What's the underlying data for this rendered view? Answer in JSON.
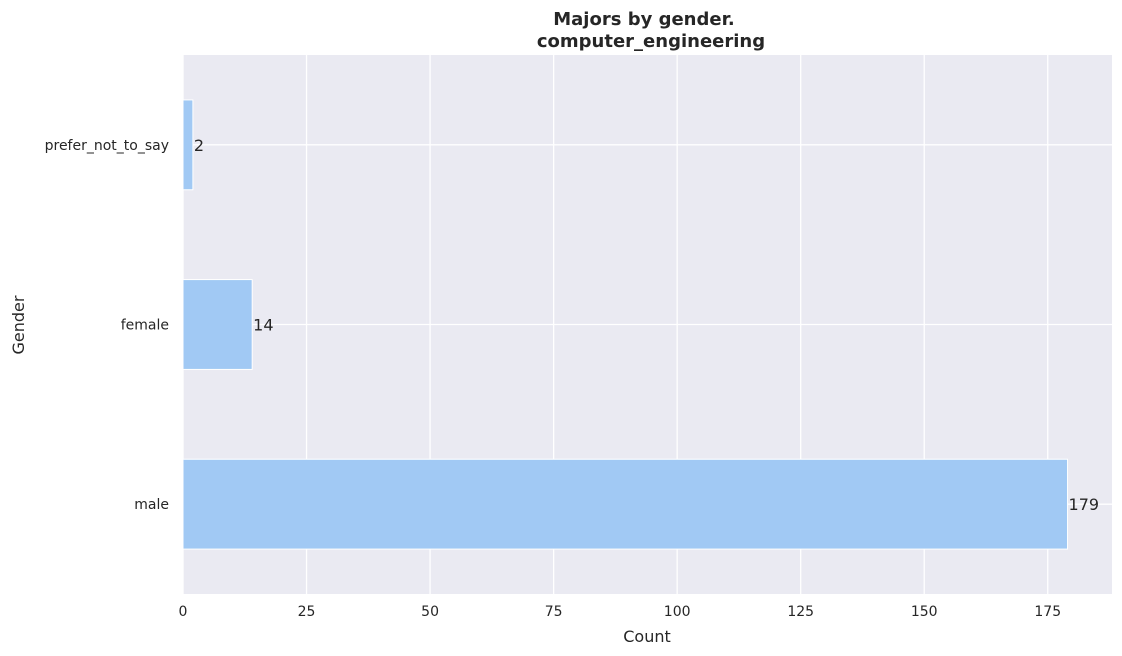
{
  "chart_data": {
    "type": "bar",
    "orientation": "horizontal",
    "title": "Majors by gender.",
    "subtitle": "computer_engineering",
    "xlabel": "Count",
    "ylabel": "Gender",
    "categories": [
      "prefer_not_to_say",
      "female",
      "male"
    ],
    "values": [
      2,
      14,
      179
    ],
    "data_labels": [
      "2",
      "14",
      "179"
    ],
    "x_ticks": [
      0,
      25,
      50,
      75,
      100,
      125,
      150,
      175
    ],
    "x_tick_labels": [
      "0",
      "25",
      "50",
      "75",
      "100",
      "125",
      "150",
      "175"
    ],
    "xlim": [
      0,
      188
    ],
    "grid": true,
    "colors": {
      "bar": "#a1c9f4",
      "plot_background": "#eaeaf2",
      "grid": "#ffffff",
      "text": "#262626"
    }
  }
}
